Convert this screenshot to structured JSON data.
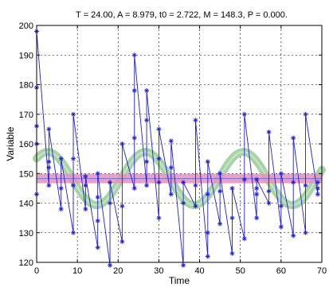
{
  "chart_data": {
    "type": "line",
    "title": "T = 24.00, A = 8.979, t0 = 2.722, M = 148.3, P = 0.000.",
    "xlabel": "Time",
    "ylabel": "Variable",
    "xlim": [
      0,
      70
    ],
    "ylim": [
      120,
      200
    ],
    "xticks": [
      0,
      10,
      20,
      30,
      40,
      50,
      60,
      70
    ],
    "yticks": [
      120,
      130,
      140,
      150,
      160,
      170,
      180,
      190,
      200
    ],
    "grid": true,
    "colors": {
      "data": "#1f1fd6",
      "model_band": "#a7d3a7",
      "mean_band": "#e88fbf",
      "mean_line": "#4b6bd6"
    },
    "model": {
      "period": 24.0,
      "amplitude": 8.979,
      "t0": 2.722,
      "mean": 148.3
    },
    "series": [
      {
        "type": "line",
        "x": [
          0,
          0,
          0,
          0,
          0,
          3,
          3,
          3,
          3,
          6,
          6,
          6,
          9,
          9,
          9,
          9,
          12,
          12,
          12,
          15,
          15,
          15,
          15,
          18,
          18,
          18,
          21,
          21,
          21,
          24,
          24,
          24,
          24,
          27,
          27,
          27,
          27,
          30,
          30,
          30,
          30,
          33,
          33,
          33,
          36,
          36,
          36,
          39,
          39,
          39,
          42,
          42,
          42,
          42,
          45,
          45,
          45,
          48,
          48,
          48,
          51,
          51,
          51,
          54,
          54,
          54,
          54,
          57,
          57,
          57,
          60,
          60,
          60,
          63,
          63,
          63,
          66,
          66,
          66,
          69,
          69,
          69
        ],
        "y": [
          143,
          160,
          166,
          179,
          198,
          146,
          152,
          154,
          165,
          138,
          145,
          155,
          130,
          146,
          155,
          170,
          138,
          146,
          149,
          125,
          134,
          142,
          150,
          119,
          140,
          147,
          127,
          139,
          160,
          145,
          162,
          178,
          190,
          146,
          154,
          168,
          178,
          135,
          147,
          155,
          165,
          143,
          152,
          161,
          119,
          140,
          147,
          139,
          146,
          168,
          122,
          130,
          143,
          154,
          133,
          144,
          150,
          123,
          135,
          145,
          128,
          148,
          170,
          135,
          143,
          145,
          148,
          140,
          144,
          164,
          132,
          139,
          150,
          129,
          147,
          162,
          130,
          146,
          170,
          143,
          145,
          147
        ]
      }
    ]
  }
}
